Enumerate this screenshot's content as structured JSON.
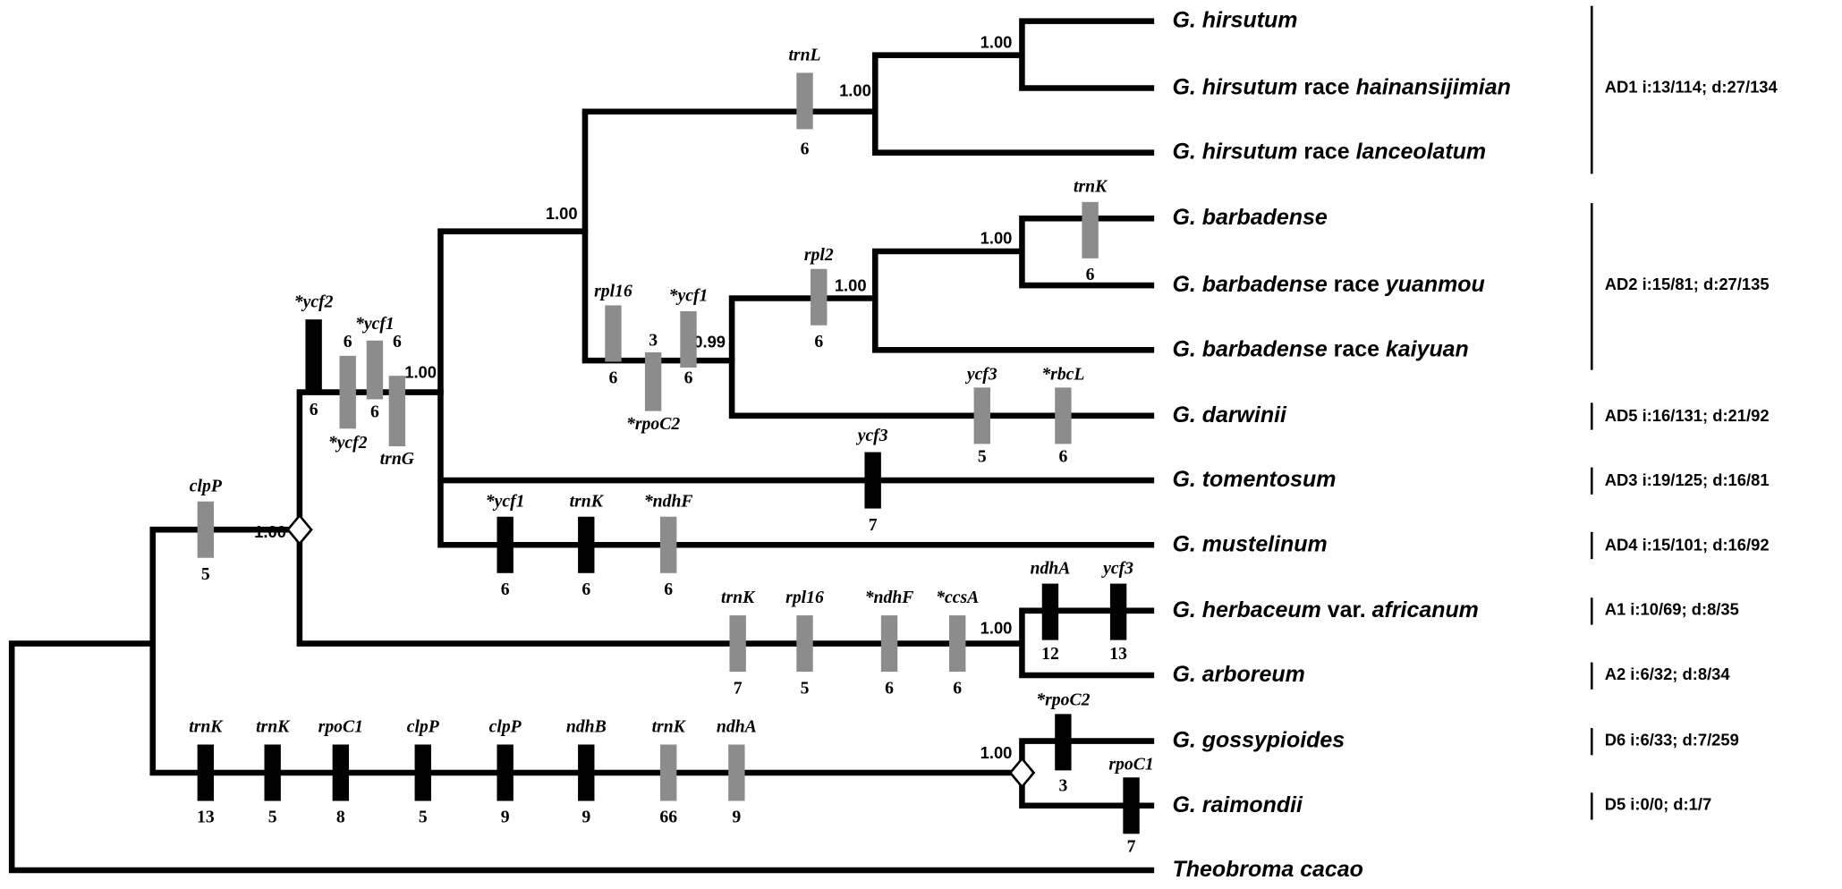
{
  "taxa": [
    {
      "parts": [
        "G. hirsutum"
      ]
    },
    {
      "parts": [
        "G. hirsutum",
        "race",
        "hainansijimian"
      ]
    },
    {
      "parts": [
        "G. hirsutum",
        "race",
        "lanceolatum"
      ]
    },
    {
      "parts": [
        "G. barbadense"
      ]
    },
    {
      "parts": [
        "G. barbadense",
        "race",
        "yuanmou"
      ]
    },
    {
      "parts": [
        "G. barbadense",
        "race",
        "kaiyuan"
      ]
    },
    {
      "parts": [
        "G. darwinii"
      ]
    },
    {
      "parts": [
        "G. tomentosum"
      ]
    },
    {
      "parts": [
        "G. mustelinum"
      ]
    },
    {
      "parts": [
        "G. herbaceum",
        "var.",
        "africanum"
      ]
    },
    {
      "parts": [
        "G. arboreum"
      ]
    },
    {
      "parts": [
        "G. gossypioides"
      ]
    },
    {
      "parts": [
        "G. raimondii"
      ]
    },
    {
      "parts": [
        "Theobroma cacao"
      ]
    }
  ],
  "supports": [
    "1.00",
    "1.00",
    "1.00",
    "1.00",
    "1.00",
    "1.00",
    "0.99",
    "1.00",
    "1.00",
    "1.00"
  ],
  "groups": [
    "AD1 i:13/114; d:27/134",
    "AD2 i:15/81; d:27/135",
    "AD5 i:16/131; d:21/92",
    "AD3 i:19/125; d:16/81",
    "AD4 i:15/101; d:16/92",
    "A1 i:10/69; d:8/35",
    "A2 i:6/32; d:8/34",
    "D6 i:6/33; d:7/259",
    "D5 i:0/0; d:1/7"
  ],
  "markers": [
    {
      "gene": "clpP",
      "count": "5",
      "color": "#8c8c8c"
    },
    {
      "gene": "*ycf2",
      "count": "6",
      "color": "#000000"
    },
    {
      "gene": "*ycf2",
      "count": "6",
      "color": "#8c8c8c"
    },
    {
      "gene": "*ycf1",
      "count": "6",
      "color": "#8c8c8c"
    },
    {
      "gene": "trnG",
      "count": "6",
      "color": "#8c8c8c"
    },
    {
      "gene": "trnL",
      "count": "6",
      "color": "#8c8c8c"
    },
    {
      "gene": "rpl16",
      "count": "6",
      "color": "#8c8c8c"
    },
    {
      "gene": "*rpoC2",
      "count": "3",
      "color": "#8c8c8c"
    },
    {
      "gene": "*ycf1",
      "count": "6",
      "color": "#8c8c8c"
    },
    {
      "gene": "rpl2",
      "count": "6",
      "color": "#8c8c8c"
    },
    {
      "gene": "trnK",
      "count": "6",
      "color": "#8c8c8c"
    },
    {
      "gene": "ycf3",
      "count": "5",
      "color": "#8c8c8c"
    },
    {
      "gene": "*rbcL",
      "count": "6",
      "color": "#8c8c8c"
    },
    {
      "gene": "ycf3",
      "count": "7",
      "color": "#000000"
    },
    {
      "gene": "*ycf1",
      "count": "6",
      "color": "#000000"
    },
    {
      "gene": "trnK",
      "count": "6",
      "color": "#000000"
    },
    {
      "gene": "*ndhF",
      "count": "6",
      "color": "#8c8c8c"
    },
    {
      "gene": "trnK",
      "count": "7",
      "color": "#8c8c8c"
    },
    {
      "gene": "rpl16",
      "count": "5",
      "color": "#8c8c8c"
    },
    {
      "gene": "*ndhF",
      "count": "6",
      "color": "#8c8c8c"
    },
    {
      "gene": "*ccsA",
      "count": "6",
      "color": "#8c8c8c"
    },
    {
      "gene": "ndhA",
      "count": "12",
      "color": "#000000"
    },
    {
      "gene": "ycf3",
      "count": "13",
      "color": "#000000"
    },
    {
      "gene": "trnK",
      "count": "13",
      "color": "#000000"
    },
    {
      "gene": "trnK",
      "count": "5",
      "color": "#000000"
    },
    {
      "gene": "rpoC1",
      "count": "8",
      "color": "#000000"
    },
    {
      "gene": "clpP",
      "count": "5",
      "color": "#000000"
    },
    {
      "gene": "clpP",
      "count": "9",
      "color": "#000000"
    },
    {
      "gene": "ndhB",
      "count": "9",
      "color": "#000000"
    },
    {
      "gene": "trnK",
      "count": "66",
      "color": "#8c8c8c"
    },
    {
      "gene": "ndhA",
      "count": "9",
      "color": "#8c8c8c"
    },
    {
      "gene": "*rpoC2",
      "count": "3",
      "color": "#000000"
    },
    {
      "gene": "rpoC1",
      "count": "7",
      "color": "#000000"
    }
  ]
}
